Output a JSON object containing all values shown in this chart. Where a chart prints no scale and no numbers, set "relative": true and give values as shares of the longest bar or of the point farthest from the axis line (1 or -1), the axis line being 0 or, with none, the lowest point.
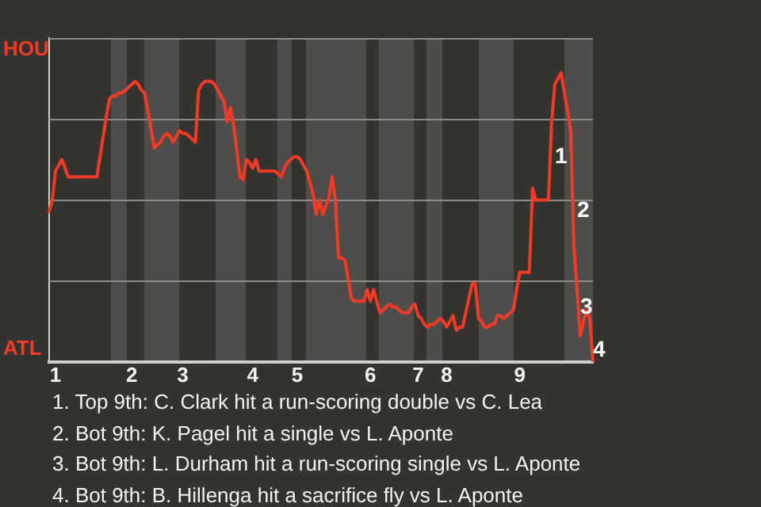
{
  "chart_data": {
    "type": "line",
    "relative": true,
    "categories": [
      null,
      null,
      "1",
      null,
      null,
      null,
      null,
      null,
      null,
      null,
      null,
      null,
      null,
      null,
      null,
      null,
      null,
      null,
      null,
      null,
      null,
      null,
      null,
      null,
      null,
      null,
      "2",
      null,
      null,
      null,
      null,
      null,
      null,
      null,
      null,
      null,
      null,
      null,
      null,
      null,
      null,
      null,
      "3",
      null,
      null,
      null,
      null,
      null,
      null,
      null,
      null,
      null,
      null,
      null,
      null,
      null,
      null,
      null,
      null,
      null,
      null,
      null,
      null,
      null,
      "4",
      null,
      null,
      null,
      null,
      null,
      null,
      null,
      null,
      null,
      null,
      null,
      null,
      null,
      "5",
      null,
      null,
      null,
      null,
      null,
      null,
      null,
      null,
      null,
      null,
      null,
      null,
      null,
      null,
      null,
      null,
      null,
      null,
      null,
      null,
      null,
      null,
      "6",
      null,
      null,
      null,
      null,
      null,
      null,
      null,
      null,
      null,
      null,
      null,
      null,
      null,
      null,
      "7",
      null,
      null,
      null,
      null,
      null,
      null,
      null,
      null,
      "8",
      null,
      null,
      null,
      null,
      null,
      null,
      null,
      null,
      null,
      null,
      null,
      null,
      null,
      null,
      null,
      null,
      null,
      null,
      null,
      null,
      null,
      null,
      "9",
      null,
      null,
      null,
      null,
      null,
      null,
      null,
      null,
      null,
      null,
      null,
      null,
      null,
      null,
      null,
      null,
      null,
      null,
      null,
      null,
      null,
      null,
      null
    ],
    "series": [
      {
        "color": "#f23a24",
        "values": [
          0.52,
          0.56,
          0.66,
          0.68,
          0.7,
          0.67,
          0.64,
          0.64,
          0.64,
          0.64,
          0.64,
          0.64,
          0.64,
          0.64,
          0.64,
          0.64,
          0.71,
          0.78,
          0.85,
          0.91,
          0.92,
          0.92,
          0.93,
          0.93,
          0.94,
          0.95,
          0.96,
          0.97,
          0.96,
          0.94,
          0.93,
          0.87,
          0.81,
          0.74,
          0.75,
          0.76,
          0.78,
          0.79,
          0.78,
          0.76,
          0.78,
          0.8,
          0.79,
          0.79,
          0.78,
          0.77,
          0.76,
          0.94,
          0.96,
          0.97,
          0.97,
          0.97,
          0.96,
          0.94,
          0.92,
          0.9,
          0.83,
          0.88,
          0.82,
          0.73,
          0.64,
          0.63,
          0.7,
          0.69,
          0.67,
          0.7,
          0.66,
          0.66,
          0.66,
          0.66,
          0.66,
          0.66,
          0.65,
          0.64,
          0.67,
          0.69,
          0.7,
          0.71,
          0.71,
          0.7,
          0.68,
          0.66,
          0.62,
          0.58,
          0.51,
          0.56,
          0.51,
          0.54,
          0.57,
          0.64,
          0.56,
          0.36,
          0.36,
          0.35,
          0.29,
          0.22,
          0.21,
          0.21,
          0.21,
          0.21,
          0.25,
          0.21,
          0.25,
          0.21,
          0.17,
          0.18,
          0.19,
          0.2,
          0.19,
          0.19,
          0.18,
          0.17,
          0.17,
          0.17,
          0.19,
          0.2,
          0.16,
          0.15,
          0.13,
          0.12,
          0.13,
          0.13,
          0.14,
          0.15,
          0.14,
          0.12,
          0.14,
          0.16,
          0.11,
          0.12,
          0.12,
          0.17,
          0.22,
          0.27,
          0.27,
          0.15,
          0.14,
          0.12,
          0.12,
          0.13,
          0.13,
          0.16,
          0.16,
          0.15,
          0.16,
          0.17,
          0.18,
          0.25,
          0.31,
          0.31,
          0.31,
          0.31,
          0.6,
          0.56,
          0.56,
          0.56,
          0.56,
          0.56,
          0.83,
          0.96,
          0.98,
          1,
          0.93,
          0.87,
          0.8,
          0.4,
          0.25,
          0.09,
          0.14,
          0.18,
          0.15,
          0
        ]
      }
    ],
    "grid": "y",
    "annotations": [
      "HOU",
      "ATL",
      "1",
      "2",
      "3",
      "4",
      "1. Top 9th: C. Clark hit a run-scoring double vs C. Lea",
      "2. Bot 9th: K. Pagel hit a single vs L. Aponte",
      "3. Bot 9th: L. Durham hit a run-scoring single vs L. Aponte",
      "4. Bot 9th: B. Hillenga hit a sacrifice fly vs L. Aponte"
    ]
  }
}
